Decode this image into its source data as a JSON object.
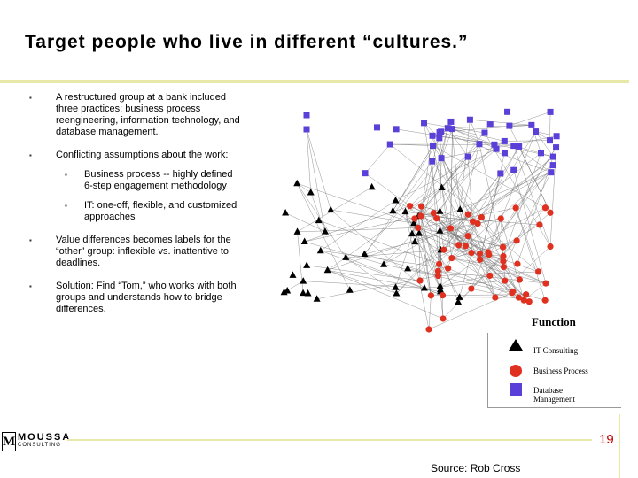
{
  "slide": {
    "title": "Target people who live in different “cultures.”",
    "bullets": [
      {
        "level": 1,
        "text": "A restructured group at a bank included three practices: business process reengineering, information technology, and database management."
      },
      {
        "level": 1,
        "text": "Conflicting assumptions about the work:"
      },
      {
        "level": 2,
        "text": "Business process -- highly defined 6-step engagement methodology"
      },
      {
        "level": 2,
        "text": "IT: one-off, flexible, and customized approaches"
      },
      {
        "level": 1,
        "text": "Value differences becomes labels for the “other” group: inflexible vs. inattentive to deadlines."
      },
      {
        "level": 1,
        "text": "Solution: Find “Tom,” who works with both groups and understands how to bridge differences."
      }
    ],
    "bullet_marker": "▪",
    "page_number": "19",
    "source": "Source: Rob Cross"
  },
  "legend": {
    "title": "Function",
    "items": [
      {
        "label": "IT Consulting",
        "shape": "triangle",
        "color": "#000000"
      },
      {
        "label": "Business Process",
        "shape": "circle",
        "color": "#e03020"
      },
      {
        "label": "Database Management",
        "shape": "square",
        "color": "#5a3fd8"
      }
    ]
  },
  "logo": {
    "name": "MOUSSA",
    "sub": "CONSULTING",
    "mark": "M"
  },
  "colors": {
    "title_rule": "#e8e8a8",
    "page_number": "#c00000"
  }
}
